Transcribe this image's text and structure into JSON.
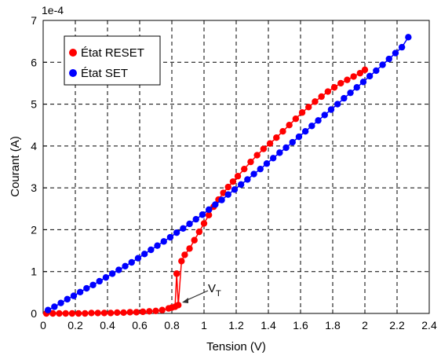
{
  "chart_data": {
    "type": "scatter",
    "title": "",
    "xlabel": "Tension (V)",
    "ylabel": "Courant (A)",
    "y_scale_label": "1e-4",
    "xlim": [
      0,
      2.4
    ],
    "ylim": [
      0,
      7
    ],
    "x_ticks": [
      "0",
      "0.2",
      "0.4",
      "0.6",
      "0.8",
      "1",
      "1.2",
      "1.4",
      "1.6",
      "1.8",
      "2",
      "2.2",
      "2.4"
    ],
    "y_ticks": [
      "0",
      "1",
      "2",
      "3",
      "4",
      "5",
      "6",
      "7"
    ],
    "grid": true,
    "legend_position": "top-left",
    "annotation": {
      "text_main": "V",
      "text_sub": "T",
      "x": 0.845,
      "y": 0.18
    },
    "series": [
      {
        "name": "État RESET",
        "color": "#ff0000",
        "x": [
          0.02,
          0.06,
          0.1,
          0.14,
          0.18,
          0.22,
          0.26,
          0.3,
          0.34,
          0.38,
          0.42,
          0.46,
          0.5,
          0.54,
          0.58,
          0.62,
          0.66,
          0.7,
          0.74,
          0.78,
          0.8,
          0.82,
          0.83,
          0.84,
          0.86,
          0.88,
          0.91,
          0.94,
          0.97,
          1.0,
          1.03,
          1.06,
          1.09,
          1.12,
          1.15,
          1.18,
          1.21,
          1.25,
          1.29,
          1.33,
          1.37,
          1.41,
          1.45,
          1.49,
          1.53,
          1.57,
          1.61,
          1.65,
          1.69,
          1.73,
          1.77,
          1.81,
          1.85,
          1.89,
          1.93,
          1.97,
          2.0
        ],
        "y": [
          0.0,
          0.0,
          0.0,
          0.0,
          0.0,
          0.0,
          0.0,
          0.01,
          0.01,
          0.01,
          0.01,
          0.02,
          0.02,
          0.03,
          0.03,
          0.04,
          0.05,
          0.06,
          0.08,
          0.12,
          0.14,
          0.16,
          0.95,
          0.2,
          1.25,
          1.4,
          1.55,
          1.75,
          1.95,
          2.15,
          2.35,
          2.55,
          2.72,
          2.88,
          3.02,
          3.15,
          3.28,
          3.45,
          3.62,
          3.78,
          3.93,
          4.06,
          4.2,
          4.35,
          4.5,
          4.65,
          4.8,
          4.93,
          5.06,
          5.18,
          5.3,
          5.4,
          5.5,
          5.58,
          5.66,
          5.74,
          5.82
        ]
      },
      {
        "name": "État SET",
        "color": "#0000ff",
        "x": [
          0.03,
          0.07,
          0.11,
          0.15,
          0.19,
          0.23,
          0.27,
          0.31,
          0.35,
          0.39,
          0.43,
          0.47,
          0.51,
          0.55,
          0.59,
          0.63,
          0.67,
          0.71,
          0.75,
          0.79,
          0.83,
          0.87,
          0.91,
          0.95,
          0.99,
          1.03,
          1.07,
          1.11,
          1.15,
          1.19,
          1.23,
          1.27,
          1.31,
          1.35,
          1.39,
          1.43,
          1.47,
          1.51,
          1.55,
          1.59,
          1.63,
          1.67,
          1.71,
          1.75,
          1.79,
          1.83,
          1.87,
          1.91,
          1.95,
          1.99,
          2.03,
          2.07,
          2.11,
          2.15,
          2.19,
          2.23,
          2.27
        ],
        "y": [
          0.08,
          0.16,
          0.25,
          0.34,
          0.42,
          0.51,
          0.6,
          0.68,
          0.77,
          0.86,
          0.95,
          1.04,
          1.13,
          1.22,
          1.32,
          1.42,
          1.52,
          1.62,
          1.72,
          1.82,
          1.93,
          2.03,
          2.14,
          2.25,
          2.36,
          2.48,
          2.6,
          2.71,
          2.84,
          2.96,
          3.08,
          3.2,
          3.33,
          3.45,
          3.58,
          3.71,
          3.84,
          3.96,
          4.09,
          4.22,
          4.35,
          4.48,
          4.61,
          4.74,
          4.87,
          5.0,
          5.14,
          5.27,
          5.4,
          5.53,
          5.67,
          5.8,
          5.94,
          6.08,
          6.22,
          6.36,
          6.6
        ]
      }
    ]
  }
}
